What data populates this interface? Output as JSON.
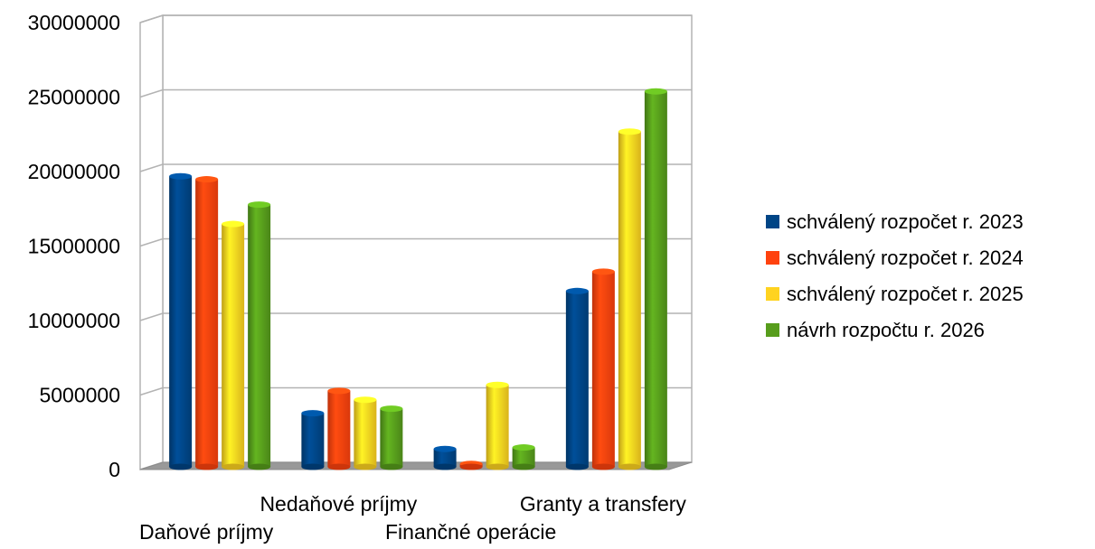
{
  "chart_data": {
    "type": "bar",
    "categories": [
      "Daňové príjmy",
      "Nedaňové príjmy",
      "Finančné operácie",
      "Granty a transfery"
    ],
    "series": [
      {
        "name": "schválený rozpočet r. 2023",
        "color": "#004586",
        "values": [
          19500000,
          3600000,
          1200000,
          11800000
        ]
      },
      {
        "name": "schválený rozpočet r. 2024",
        "color": "#ff420e",
        "values": [
          19300000,
          5100000,
          200000,
          13100000
        ]
      },
      {
        "name": "schválený rozpočet r. 2025",
        "color": "#ffd320",
        "values": [
          16300000,
          4500000,
          5500000,
          22500000
        ]
      },
      {
        "name": "návrh rozpočtu r. 2026",
        "color": "#579d1c",
        "values": [
          17600000,
          3900000,
          1300000,
          25200000
        ]
      }
    ],
    "y_ticks": [
      "0",
      "5000000",
      "10000000",
      "15000000",
      "20000000",
      "25000000",
      "30000000"
    ],
    "ylim": [
      0,
      30000000
    ],
    "grid": true,
    "legend_position": "right",
    "title": "",
    "xlabel": "",
    "ylabel": ""
  }
}
